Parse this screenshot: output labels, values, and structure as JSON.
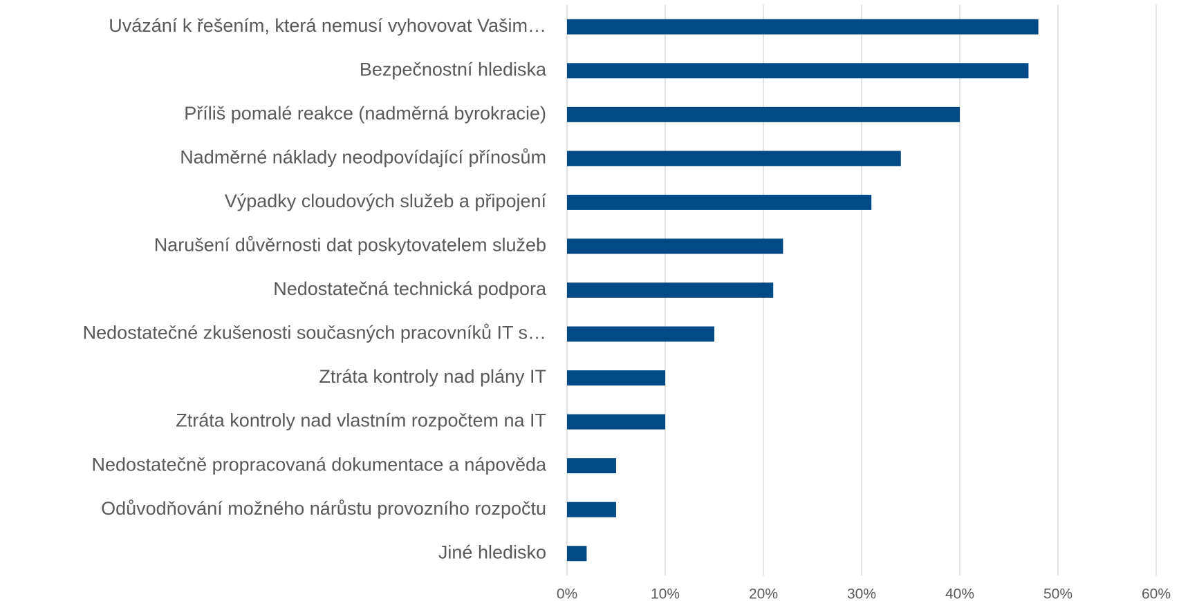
{
  "chart_data": {
    "type": "bar",
    "orientation": "horizontal",
    "categories": [
      "Uvázání k řešením, která nemusí vyhovovat Vašim…",
      "Bezpečnostní hlediska",
      "Příliš pomalé reakce (nadměrná byrokracie)",
      "Nadměrné náklady neodpovídající přínosům",
      "Výpadky cloudových služeb a připojení",
      "Narušení důvěrnosti dat poskytovatelem služeb",
      "Nedostatečná technická podpora",
      "Nedostatečné zkušenosti současných pracovníků IT s…",
      "Ztráta kontroly nad plány IT",
      "Ztráta kontroly nad vlastním rozpočtem na IT",
      "Nedostatečně propracovaná dokumentace a nápověda",
      "Odůvodňování možného nárůstu provozního rozpočtu",
      "Jiné hledisko"
    ],
    "values": [
      48,
      47,
      40,
      34,
      31,
      22,
      21,
      15,
      10,
      10,
      5,
      5,
      2
    ],
    "color": "#024a86",
    "xlim": [
      0,
      60
    ],
    "xticks": [
      {
        "value": 0,
        "label": "0%"
      },
      {
        "value": 10,
        "label": "10%"
      },
      {
        "value": 20,
        "label": "20%"
      },
      {
        "value": 30,
        "label": "30%"
      },
      {
        "value": 40,
        "label": "40%"
      },
      {
        "value": 50,
        "label": "50%"
      },
      {
        "value": 60,
        "label": "60%"
      }
    ],
    "grid": true
  }
}
